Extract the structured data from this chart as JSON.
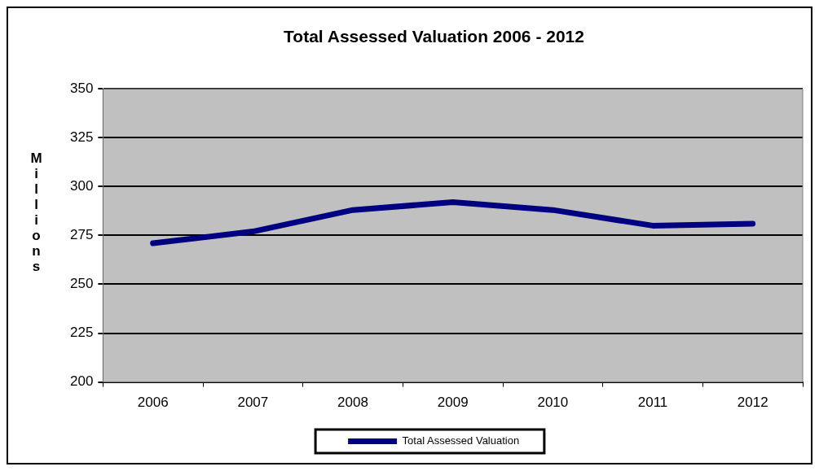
{
  "chart_data": {
    "type": "line",
    "title": "Total Assessed Valuation 2006 - 2012",
    "ylabel": "Millions",
    "categories": [
      "2006",
      "2007",
      "2008",
      "2009",
      "2010",
      "2011",
      "2012"
    ],
    "series": [
      {
        "name": "Total Assessed Valuation",
        "color": "#000080",
        "values": [
          271,
          277,
          288,
          292,
          288,
          280,
          281
        ]
      }
    ],
    "ylim": [
      200,
      350
    ],
    "yticks": [
      200,
      225,
      250,
      275,
      300,
      325,
      350
    ],
    "grid": "y",
    "legend": "bottom",
    "marker": "none",
    "line_style": "solid"
  }
}
